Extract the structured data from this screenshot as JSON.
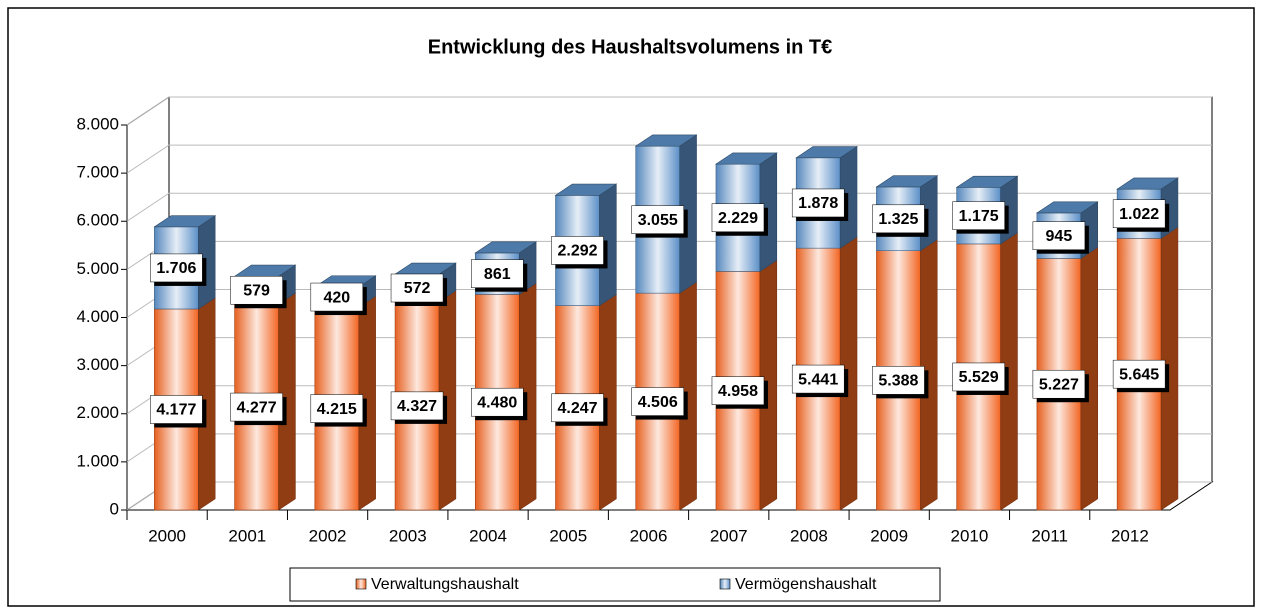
{
  "chart_data": {
    "type": "stacked-bar-3d",
    "title": "Entwicklung des Haushaltsvolumens in T€",
    "categories": [
      "2000",
      "2001",
      "2002",
      "2003",
      "2004",
      "2005",
      "2006",
      "2007",
      "2008",
      "2009",
      "2010",
      "2011",
      "2012"
    ],
    "series": [
      {
        "name": "Verwaltungshaushalt",
        "color": "#f26522",
        "values": [
          4177,
          4277,
          4215,
          4327,
          4480,
          4247,
          4506,
          4958,
          5441,
          5388,
          5529,
          5227,
          5645
        ],
        "value_labels": [
          "4.177",
          "4.277",
          "4.215",
          "4.327",
          "4.480",
          "4.247",
          "4.506",
          "4.958",
          "5.441",
          "5.388",
          "5.529",
          "5.227",
          "5.645"
        ]
      },
      {
        "name": "Vermögenshaushalt",
        "color": "#5b8fc7",
        "values": [
          1706,
          579,
          420,
          572,
          861,
          2292,
          3055,
          2229,
          1878,
          1325,
          1175,
          945,
          1022
        ],
        "value_labels": [
          "1.706",
          "579",
          "420",
          "572",
          "861",
          "2.292",
          "3.055",
          "2.229",
          "1.878",
          "1.325",
          "1.175",
          "945",
          "1.022"
        ]
      }
    ],
    "ylim": [
      0,
      8000
    ],
    "yticks": [
      0,
      {
        "value": 1000,
        "label": "1.000"
      },
      {
        "value": 2000,
        "label": "2.000"
      },
      {
        "value": 3000,
        "label": "3.000"
      },
      {
        "value": 4000,
        "label": "4.000"
      },
      {
        "value": 5000,
        "label": "5.000"
      },
      {
        "value": 6000,
        "label": "6.000"
      },
      {
        "value": 7000,
        "label": "7.000"
      },
      {
        "value": 8000,
        "label": "8.000"
      }
    ],
    "grid": true,
    "legend": "bottom"
  }
}
